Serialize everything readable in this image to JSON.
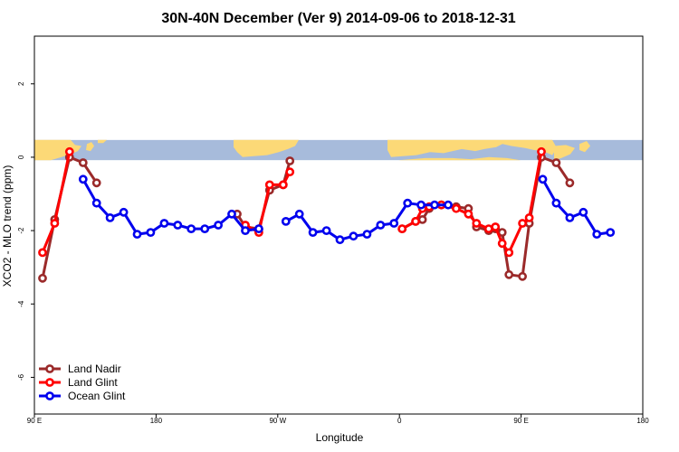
{
  "chart_data": {
    "type": "line",
    "title": "30N-40N December (Ver 9)   2014-09-06 to 2018-12-31",
    "xlabel": "Longitude",
    "ylabel": "XCO2 - MLO trend (ppm)",
    "xlim": [
      90,
      540
    ],
    "ylim": [
      -7,
      3.3
    ],
    "x_ticks": [
      {
        "value": 90,
        "label": "90 E"
      },
      {
        "value": 180,
        "label": "180"
      },
      {
        "value": 270,
        "label": "90 W"
      },
      {
        "value": 360,
        "label": "0"
      },
      {
        "value": 450,
        "label": "90 E"
      },
      {
        "value": 540,
        "label": "180"
      }
    ],
    "y_ticks": [
      {
        "value": 2,
        "label": "2"
      },
      {
        "value": 0,
        "label": "0"
      },
      {
        "value": -2,
        "label": "-2"
      },
      {
        "value": -4,
        "label": "-4"
      },
      {
        "value": -6,
        "label": "-6"
      }
    ],
    "map_strip": {
      "ymin": -0.08,
      "ymax": 0.47,
      "ocean_color": "#a7bbdb",
      "land_color": "#fcd977"
    },
    "legend_position": "bottom-left",
    "series": [
      {
        "name": "Land Nadir",
        "color": "#9b2a2a",
        "segments": [
          [
            [
              96,
              -3.3
            ],
            [
              105,
              -1.7
            ],
            [
              116,
              0.0
            ],
            [
              126,
              -0.15
            ],
            [
              136,
              -0.7
            ]
          ],
          [
            [
              240,
              -1.55
            ],
            [
              246,
              -1.9
            ],
            [
              256,
              -1.95
            ],
            [
              264,
              -0.9
            ],
            [
              274,
              -0.75
            ],
            [
              279,
              -0.1
            ]
          ],
          [
            [
              362,
              -1.95
            ],
            [
              372,
              -1.75
            ],
            [
              377,
              -1.7
            ],
            [
              382,
              -1.4
            ],
            [
              391,
              -1.3
            ],
            [
              402,
              -1.35
            ],
            [
              411,
              -1.4
            ],
            [
              417,
              -1.9
            ],
            [
              426,
              -2.0
            ],
            [
              431,
              -1.95
            ],
            [
              436,
              -2.05
            ],
            [
              441,
              -3.2
            ],
            [
              451,
              -3.25
            ],
            [
              456,
              -1.8
            ],
            [
              465,
              0.0
            ],
            [
              476,
              -0.15
            ],
            [
              486,
              -0.7
            ]
          ]
        ]
      },
      {
        "name": "Land Glint",
        "color": "#ff0000",
        "segments": [
          [
            [
              96,
              -2.6
            ],
            [
              105,
              -1.8
            ],
            [
              116,
              0.15
            ]
          ],
          [
            [
              246,
              -1.85
            ],
            [
              256,
              -2.05
            ],
            [
              264,
              -0.75
            ],
            [
              274,
              -0.75
            ],
            [
              279,
              -0.4
            ]
          ],
          [
            [
              362,
              -1.95
            ],
            [
              372,
              -1.75
            ],
            [
              377,
              -1.4
            ],
            [
              382,
              -1.35
            ],
            [
              391,
              -1.3
            ],
            [
              402,
              -1.4
            ],
            [
              411,
              -1.55
            ],
            [
              417,
              -1.8
            ],
            [
              426,
              -1.95
            ],
            [
              431,
              -1.9
            ],
            [
              436,
              -2.35
            ],
            [
              441,
              -2.6
            ],
            [
              451,
              -1.8
            ],
            [
              456,
              -1.65
            ],
            [
              465,
              0.15
            ]
          ]
        ]
      },
      {
        "name": "Ocean Glint",
        "color": "#0000ee",
        "segments": [
          [
            [
              126,
              -0.6
            ],
            [
              136,
              -1.25
            ],
            [
              146,
              -1.65
            ],
            [
              156,
              -1.5
            ],
            [
              166,
              -2.1
            ],
            [
              176,
              -2.05
            ],
            [
              186,
              -1.8
            ],
            [
              196,
              -1.85
            ],
            [
              206,
              -1.95
            ],
            [
              216,
              -1.95
            ],
            [
              226,
              -1.85
            ],
            [
              236,
              -1.55
            ],
            [
              246,
              -2.0
            ],
            [
              256,
              -1.95
            ]
          ],
          [
            [
              276,
              -1.75
            ],
            [
              286,
              -1.55
            ],
            [
              296,
              -2.05
            ],
            [
              306,
              -2.0
            ],
            [
              316,
              -2.25
            ],
            [
              326,
              -2.15
            ],
            [
              336,
              -2.1
            ],
            [
              346,
              -1.85
            ],
            [
              356,
              -1.8
            ],
            [
              366,
              -1.25
            ],
            [
              376,
              -1.3
            ],
            [
              386,
              -1.3
            ],
            [
              396,
              -1.3
            ]
          ],
          [
            [
              466,
              -0.6
            ],
            [
              476,
              -1.25
            ],
            [
              486,
              -1.65
            ],
            [
              496,
              -1.5
            ],
            [
              506,
              -2.1
            ],
            [
              516,
              -2.05
            ]
          ]
        ]
      }
    ]
  }
}
